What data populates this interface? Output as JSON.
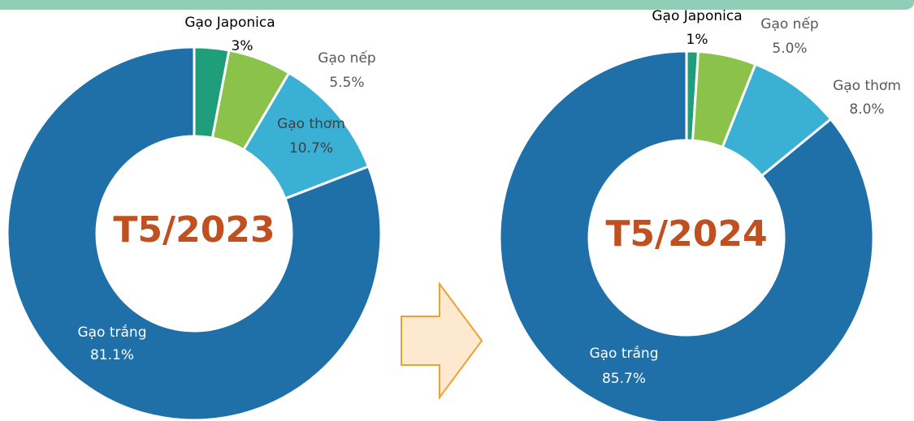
{
  "chart_data": [
    {
      "type": "donut",
      "title": "T5/2023",
      "categories": [
        "Gạo Japonica",
        "Gạo nếp",
        "Gạo thơm",
        "Gạo trắng"
      ],
      "values": [
        3,
        5.5,
        10.7,
        81.1
      ],
      "value_labels": [
        "3%",
        "5.5%",
        "10.7%",
        "81.1%"
      ],
      "colors": [
        "#1e9e7a",
        "#8bc34a",
        "#3ab0d4",
        "#1f6fa8"
      ]
    },
    {
      "type": "donut",
      "title": "T5/2024",
      "categories": [
        "Gạo Japonica",
        "Gạo nếp",
        "Gạo thơm",
        "Gạo trắng"
      ],
      "values": [
        1,
        5.0,
        8.0,
        85.7
      ],
      "value_labels": [
        "1%",
        "5.0%",
        "8.0%",
        "85.7%"
      ],
      "colors": [
        "#1e9e7a",
        "#8bc34a",
        "#3ab0d4",
        "#1f6fa8"
      ]
    }
  ]
}
